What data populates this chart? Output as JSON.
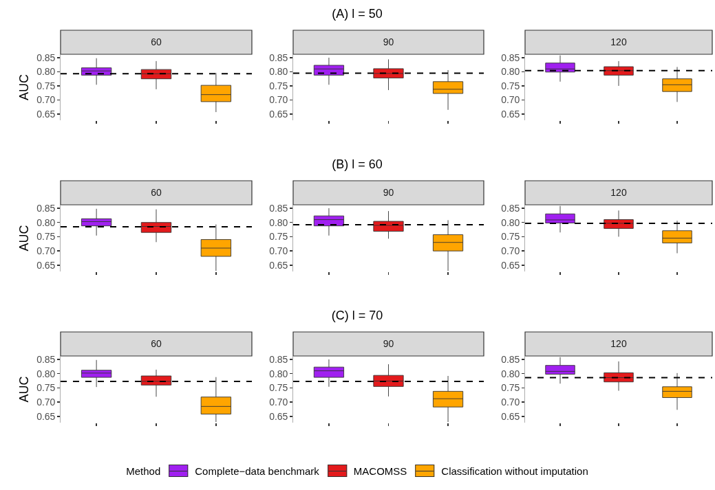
{
  "chart_data": [
    {
      "type": "box",
      "title": "60",
      "ylabel": "AUC",
      "categories": [
        null,
        null,
        null
      ],
      "ylim": [
        0.628,
        0.862
      ],
      "yticks": [
        {
          "value": 0.65,
          "label": "0.65"
        },
        {
          "value": 0.7,
          "label": "0.70"
        },
        {
          "value": 0.75,
          "label": "0.75"
        },
        {
          "value": 0.8,
          "label": "0.80"
        },
        {
          "value": 0.85,
          "label": "0.85"
        }
      ],
      "grid": false,
      "tick_labels": "y",
      "ref_lines": [
        {
          "axis": "y",
          "value": 0.793,
          "line_style": "dashed",
          "color": "#000000"
        }
      ],
      "series": [
        {
          "color": "#a020f0",
          "boxes": [
            {
              "low": 0.754,
              "q1": 0.788,
              "median": 0.803,
              "q3": 0.814,
              "high": 0.848
            },
            null,
            null
          ]
        },
        {
          "color": "#e31a1c",
          "boxes": [
            null,
            {
              "low": 0.738,
              "q1": 0.775,
              "median": 0.793,
              "q3": 0.808,
              "high": 0.838
            },
            null
          ]
        },
        {
          "color": "#ffa500",
          "boxes": [
            null,
            null,
            {
              "low": 0.657,
              "q1": 0.694,
              "median": 0.719,
              "q3": 0.752,
              "high": 0.796
            }
          ]
        }
      ]
    },
    {
      "type": "box",
      "title": "90",
      "subtitle": "(A) l = 50",
      "categories": [
        null,
        null,
        null
      ],
      "ylim": [
        0.628,
        0.862
      ],
      "yticks": [
        {
          "value": 0.65,
          "label": "0.65"
        },
        {
          "value": 0.7,
          "label": "0.70"
        },
        {
          "value": 0.75,
          "label": "0.75"
        },
        {
          "value": 0.8,
          "label": "0.80"
        },
        {
          "value": 0.85,
          "label": "0.85"
        }
      ],
      "grid": false,
      "tick_labels": "y",
      "ref_lines": [
        {
          "axis": "y",
          "value": 0.795,
          "line_style": "dashed",
          "color": "#000000"
        }
      ],
      "series": [
        {
          "color": "#a020f0",
          "boxes": [
            {
              "low": 0.754,
              "q1": 0.788,
              "median": 0.81,
              "q3": 0.823,
              "high": 0.85
            },
            null,
            null
          ]
        },
        {
          "color": "#e31a1c",
          "boxes": [
            null,
            {
              "low": 0.735,
              "q1": 0.778,
              "median": 0.794,
              "q3": 0.811,
              "high": 0.844
            },
            null
          ]
        },
        {
          "color": "#ffa500",
          "boxes": [
            null,
            null,
            {
              "low": 0.665,
              "q1": 0.723,
              "median": 0.738,
              "q3": 0.765,
              "high": 0.806
            }
          ]
        }
      ]
    },
    {
      "type": "box",
      "title": "120",
      "categories": [
        null,
        null,
        null
      ],
      "ylim": [
        0.628,
        0.862
      ],
      "yticks": [
        {
          "value": 0.65,
          "label": "0.65"
        },
        {
          "value": 0.7,
          "label": "0.70"
        },
        {
          "value": 0.75,
          "label": "0.75"
        },
        {
          "value": 0.8,
          "label": "0.80"
        },
        {
          "value": 0.85,
          "label": "0.85"
        }
      ],
      "grid": false,
      "tick_labels": "y",
      "ref_lines": [
        {
          "axis": "y",
          "value": 0.804,
          "line_style": "dashed",
          "color": "#000000"
        }
      ],
      "series": [
        {
          "color": "#a020f0",
          "boxes": [
            {
              "low": 0.765,
              "q1": 0.799,
              "median": 0.81,
              "q3": 0.831,
              "high": 0.858
            },
            null,
            null
          ]
        },
        {
          "color": "#e31a1c",
          "boxes": [
            null,
            {
              "low": 0.75,
              "q1": 0.788,
              "median": 0.804,
              "q3": 0.818,
              "high": 0.838
            },
            null
          ]
        },
        {
          "color": "#ffa500",
          "boxes": [
            null,
            null,
            {
              "low": 0.693,
              "q1": 0.73,
              "median": 0.754,
              "q3": 0.775,
              "high": 0.817
            }
          ]
        }
      ]
    },
    {
      "type": "box",
      "title": "60",
      "ylabel": "AUC",
      "categories": [
        null,
        null,
        null
      ],
      "ylim": [
        0.628,
        0.862
      ],
      "yticks": [
        {
          "value": 0.65,
          "label": "0.65"
        },
        {
          "value": 0.7,
          "label": "0.70"
        },
        {
          "value": 0.75,
          "label": "0.75"
        },
        {
          "value": 0.8,
          "label": "0.80"
        },
        {
          "value": 0.85,
          "label": "0.85"
        }
      ],
      "grid": false,
      "tick_labels": "y",
      "ref_lines": [
        {
          "axis": "y",
          "value": 0.785,
          "line_style": "dashed",
          "color": "#000000"
        }
      ],
      "series": [
        {
          "color": "#a020f0",
          "boxes": [
            {
              "low": 0.754,
              "q1": 0.788,
              "median": 0.803,
              "q3": 0.813,
              "high": 0.848
            },
            null,
            null
          ]
        },
        {
          "color": "#e31a1c",
          "boxes": [
            null,
            {
              "low": 0.731,
              "q1": 0.765,
              "median": 0.786,
              "q3": 0.8,
              "high": 0.846
            },
            null
          ]
        },
        {
          "color": "#ffa500",
          "boxes": [
            null,
            null,
            {
              "low": 0.63,
              "q1": 0.681,
              "median": 0.71,
              "q3": 0.74,
              "high": 0.793
            }
          ]
        }
      ]
    },
    {
      "type": "box",
      "title": "90",
      "subtitle": "(B) l = 60",
      "categories": [
        null,
        null,
        null
      ],
      "ylim": [
        0.628,
        0.862
      ],
      "yticks": [
        {
          "value": 0.65,
          "label": "0.65"
        },
        {
          "value": 0.7,
          "label": "0.70"
        },
        {
          "value": 0.75,
          "label": "0.75"
        },
        {
          "value": 0.8,
          "label": "0.80"
        },
        {
          "value": 0.85,
          "label": "0.85"
        }
      ],
      "grid": false,
      "tick_labels": "y",
      "ref_lines": [
        {
          "axis": "y",
          "value": 0.792,
          "line_style": "dashed",
          "color": "#000000"
        }
      ],
      "series": [
        {
          "color": "#a020f0",
          "boxes": [
            {
              "low": 0.754,
              "q1": 0.788,
              "median": 0.81,
              "q3": 0.823,
              "high": 0.85
            },
            null,
            null
          ]
        },
        {
          "color": "#e31a1c",
          "boxes": [
            null,
            {
              "low": 0.743,
              "q1": 0.769,
              "median": 0.79,
              "q3": 0.804,
              "high": 0.84
            },
            null
          ]
        },
        {
          "color": "#ffa500",
          "boxes": [
            null,
            null,
            {
              "low": 0.63,
              "q1": 0.7,
              "median": 0.73,
              "q3": 0.757,
              "high": 0.808
            }
          ]
        }
      ]
    },
    {
      "type": "box",
      "title": "120",
      "categories": [
        null,
        null,
        null
      ],
      "ylim": [
        0.628,
        0.862
      ],
      "yticks": [
        {
          "value": 0.65,
          "label": "0.65"
        },
        {
          "value": 0.7,
          "label": "0.70"
        },
        {
          "value": 0.75,
          "label": "0.75"
        },
        {
          "value": 0.8,
          "label": "0.80"
        },
        {
          "value": 0.85,
          "label": "0.85"
        }
      ],
      "grid": false,
      "tick_labels": "y",
      "ref_lines": [
        {
          "axis": "y",
          "value": 0.797,
          "line_style": "dashed",
          "color": "#000000"
        }
      ],
      "series": [
        {
          "color": "#a020f0",
          "boxes": [
            {
              "low": 0.765,
              "q1": 0.798,
              "median": 0.809,
              "q3": 0.83,
              "high": 0.858
            },
            null,
            null
          ]
        },
        {
          "color": "#e31a1c",
          "boxes": [
            null,
            {
              "low": 0.75,
              "q1": 0.779,
              "median": 0.797,
              "q3": 0.81,
              "high": 0.842
            },
            null
          ]
        },
        {
          "color": "#ffa500",
          "boxes": [
            null,
            null,
            {
              "low": 0.692,
              "q1": 0.728,
              "median": 0.745,
              "q3": 0.771,
              "high": 0.806
            }
          ]
        }
      ]
    },
    {
      "type": "box",
      "title": "60",
      "ylabel": "AUC",
      "categories": [
        null,
        null,
        null
      ],
      "ylim": [
        0.628,
        0.862
      ],
      "yticks": [
        {
          "value": 0.65,
          "label": "0.65"
        },
        {
          "value": 0.7,
          "label": "0.70"
        },
        {
          "value": 0.75,
          "label": "0.75"
        },
        {
          "value": 0.8,
          "label": "0.80"
        },
        {
          "value": 0.85,
          "label": "0.85"
        }
      ],
      "grid": false,
      "tick_labels": "y",
      "ref_lines": [
        {
          "axis": "y",
          "value": 0.773,
          "line_style": "dashed",
          "color": "#000000"
        }
      ],
      "series": [
        {
          "color": "#a020f0",
          "boxes": [
            {
              "low": 0.753,
              "q1": 0.787,
              "median": 0.802,
              "q3": 0.812,
              "high": 0.848
            },
            null,
            null
          ]
        },
        {
          "color": "#e31a1c",
          "boxes": [
            null,
            {
              "low": 0.719,
              "q1": 0.76,
              "median": 0.773,
              "q3": 0.792,
              "high": 0.814
            },
            null
          ]
        },
        {
          "color": "#ffa500",
          "boxes": [
            null,
            null,
            {
              "low": 0.63,
              "q1": 0.658,
              "median": 0.685,
              "q3": 0.718,
              "high": 0.788
            }
          ]
        }
      ]
    },
    {
      "type": "box",
      "title": "90",
      "subtitle": "(C) l = 70",
      "categories": [
        null,
        null,
        null
      ],
      "ylim": [
        0.628,
        0.862
      ],
      "yticks": [
        {
          "value": 0.65,
          "label": "0.65"
        },
        {
          "value": 0.7,
          "label": "0.70"
        },
        {
          "value": 0.75,
          "label": "0.75"
        },
        {
          "value": 0.8,
          "label": "0.80"
        },
        {
          "value": 0.85,
          "label": "0.85"
        }
      ],
      "grid": false,
      "tick_labels": "y",
      "ref_lines": [
        {
          "axis": "y",
          "value": 0.773,
          "line_style": "dashed",
          "color": "#000000"
        }
      ],
      "series": [
        {
          "color": "#a020f0",
          "boxes": [
            {
              "low": 0.754,
              "q1": 0.787,
              "median": 0.81,
              "q3": 0.823,
              "high": 0.85
            },
            null,
            null
          ]
        },
        {
          "color": "#e31a1c",
          "boxes": [
            null,
            {
              "low": 0.72,
              "q1": 0.755,
              "median": 0.774,
              "q3": 0.794,
              "high": 0.833
            },
            null
          ]
        },
        {
          "color": "#ffa500",
          "boxes": [
            null,
            null,
            {
              "low": 0.63,
              "q1": 0.683,
              "median": 0.712,
              "q3": 0.738,
              "high": 0.792
            }
          ]
        }
      ]
    },
    {
      "type": "box",
      "title": "120",
      "legend": "bottom",
      "legend_title": "Method",
      "categories": [
        null,
        null,
        null
      ],
      "ylim": [
        0.628,
        0.862
      ],
      "yticks": [
        {
          "value": 0.65,
          "label": "0.65"
        },
        {
          "value": 0.7,
          "label": "0.70"
        },
        {
          "value": 0.75,
          "label": "0.75"
        },
        {
          "value": 0.8,
          "label": "0.80"
        },
        {
          "value": 0.85,
          "label": "0.85"
        }
      ],
      "grid": false,
      "tick_labels": "y",
      "ref_lines": [
        {
          "axis": "y",
          "value": 0.786,
          "line_style": "dashed",
          "color": "#000000"
        }
      ],
      "series": [
        {
          "name": "Complete−data benchmark",
          "color": "#a020f0",
          "boxes": [
            {
              "low": 0.765,
              "q1": 0.798,
              "median": 0.808,
              "q3": 0.829,
              "high": 0.858
            },
            null,
            null
          ]
        },
        {
          "name": "MACOMSS",
          "color": "#e31a1c",
          "boxes": [
            null,
            {
              "low": 0.74,
              "q1": 0.771,
              "median": 0.786,
              "q3": 0.803,
              "high": 0.843
            },
            null
          ]
        },
        {
          "name": "Classification without imputation",
          "color": "#ffa500",
          "boxes": [
            null,
            null,
            {
              "low": 0.673,
              "q1": 0.716,
              "median": 0.738,
              "q3": 0.754,
              "high": 0.802
            }
          ]
        }
      ]
    }
  ]
}
